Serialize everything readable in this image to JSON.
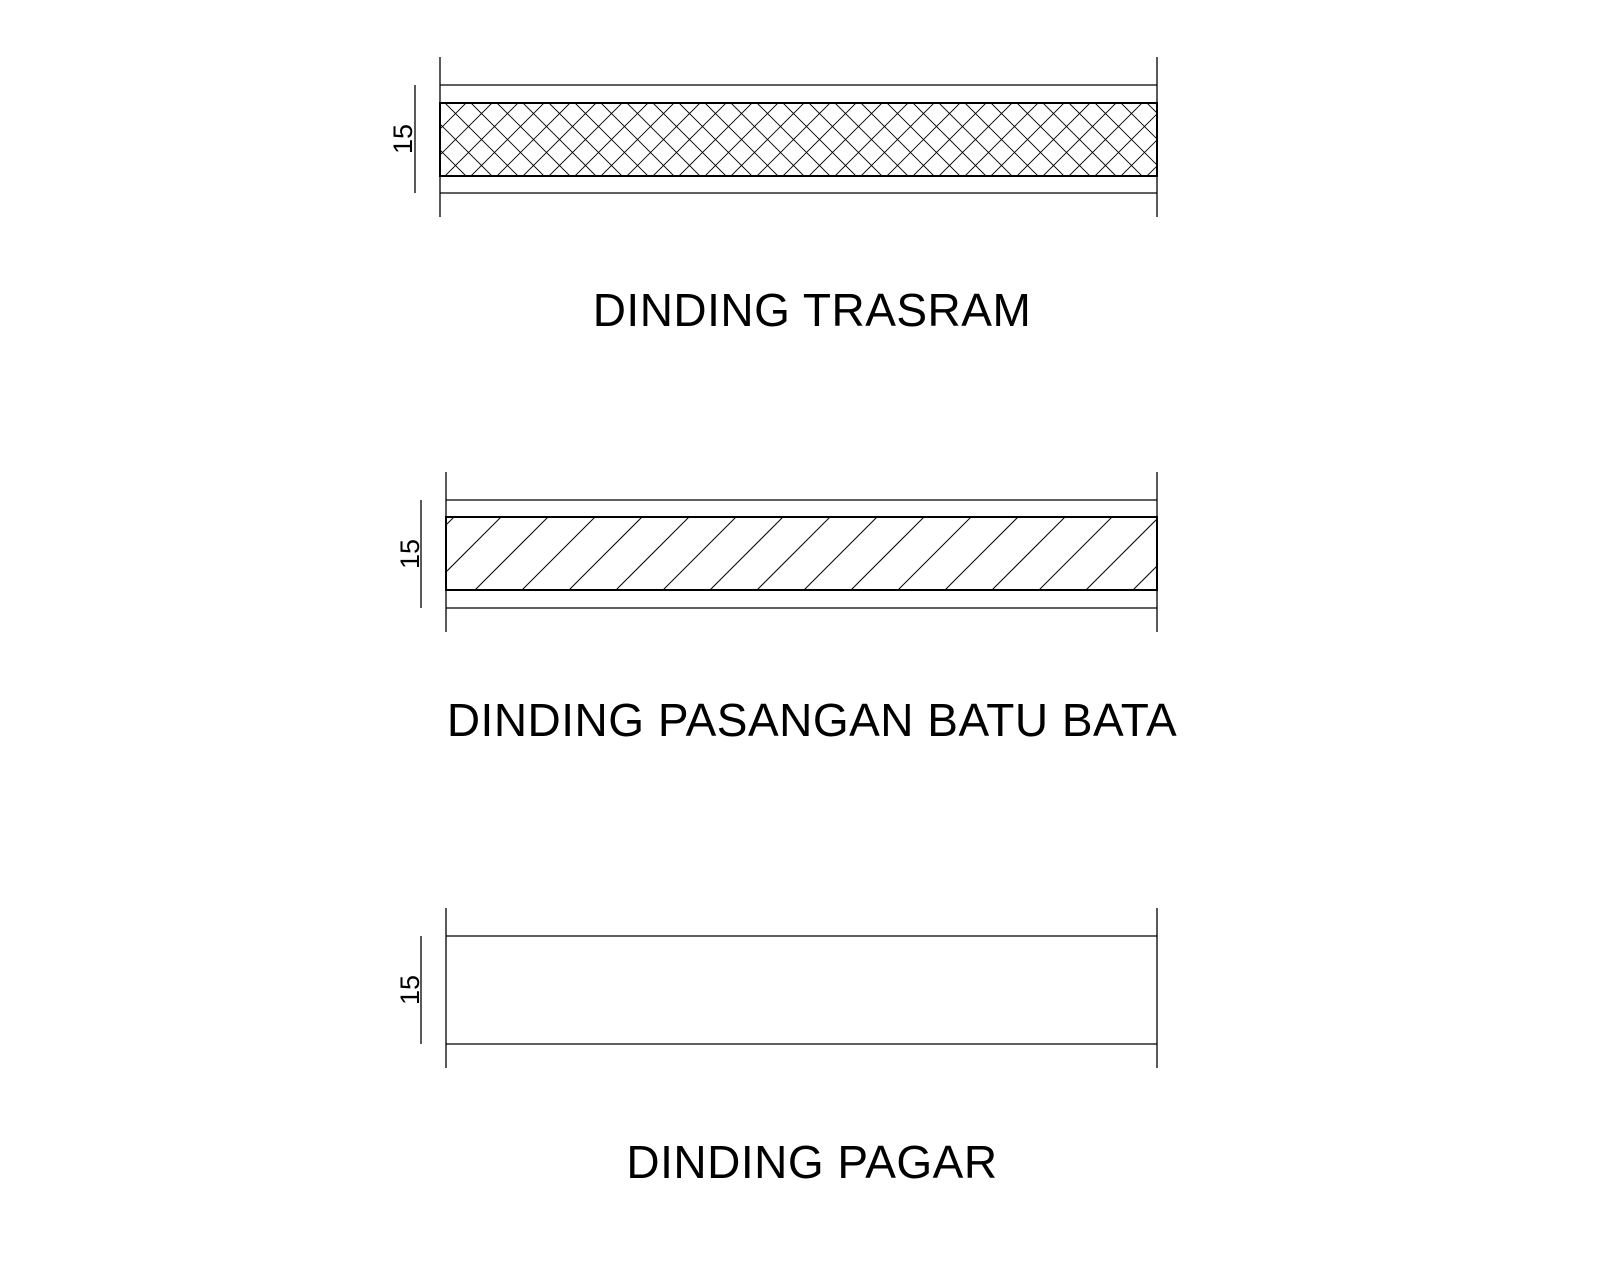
{
  "sections": [
    {
      "id": "trasram",
      "title": "DINDING TRASRAM",
      "dimension": "15",
      "hatch": "crosshatch"
    },
    {
      "id": "batu-bata",
      "title": "DINDING PASANGAN BATU BATA",
      "dimension": "15",
      "hatch": "diagonal"
    },
    {
      "id": "pagar",
      "title": "DINDING PAGAR",
      "dimension": "15",
      "hatch": "none"
    }
  ],
  "colors": {
    "line": "#000000",
    "background": "#ffffff"
  }
}
